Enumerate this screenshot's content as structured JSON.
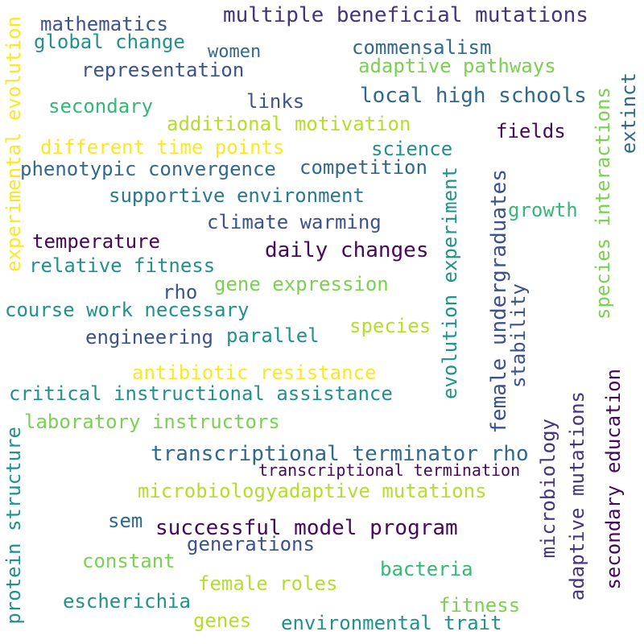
{
  "palette": {
    "dark_purple": "#46085c",
    "indigo": "#3b528b",
    "blue": "#31688e",
    "teal": "#21918c",
    "green": "#35b779",
    "light_green": "#7ad151",
    "yellow": "#fde725",
    "lime": "#b5de2b"
  },
  "words": [
    {
      "text": "multiple beneficial mutations",
      "color": "#46337e",
      "orientation": "horizontal"
    },
    {
      "text": "mathematics",
      "color": "#3b528b",
      "orientation": "horizontal"
    },
    {
      "text": "global change",
      "color": "#21918c",
      "orientation": "horizontal"
    },
    {
      "text": "women",
      "color": "#31688e",
      "orientation": "horizontal"
    },
    {
      "text": "commensalism",
      "color": "#31688e",
      "orientation": "horizontal"
    },
    {
      "text": "representation",
      "color": "#3b528b",
      "orientation": "horizontal"
    },
    {
      "text": "adaptive pathways",
      "color": "#7ad151",
      "orientation": "horizontal"
    },
    {
      "text": "links",
      "color": "#3b528b",
      "orientation": "horizontal"
    },
    {
      "text": "local high schools",
      "color": "#31688e",
      "orientation": "horizontal"
    },
    {
      "text": "secondary",
      "color": "#35b779",
      "orientation": "horizontal"
    },
    {
      "text": "additional motivation",
      "color": "#b5de2b",
      "orientation": "horizontal"
    },
    {
      "text": "fields",
      "color": "#46085c",
      "orientation": "horizontal"
    },
    {
      "text": "different time points",
      "color": "#fde725",
      "orientation": "horizontal"
    },
    {
      "text": "science",
      "color": "#21918c",
      "orientation": "horizontal"
    },
    {
      "text": "phenotypic convergence",
      "color": "#31688e",
      "orientation": "horizontal"
    },
    {
      "text": "competition",
      "color": "#31688e",
      "orientation": "horizontal"
    },
    {
      "text": "supportive environment",
      "color": "#2a788e",
      "orientation": "horizontal"
    },
    {
      "text": "growth",
      "color": "#35b779",
      "orientation": "horizontal"
    },
    {
      "text": "climate warming",
      "color": "#3b528b",
      "orientation": "horizontal"
    },
    {
      "text": "temperature",
      "color": "#46085c",
      "orientation": "horizontal"
    },
    {
      "text": "daily changes",
      "color": "#46085c",
      "orientation": "horizontal"
    },
    {
      "text": "relative fitness",
      "color": "#21918c",
      "orientation": "horizontal"
    },
    {
      "text": "gene expression",
      "color": "#7ad151",
      "orientation": "horizontal"
    },
    {
      "text": "rho",
      "color": "#3b528b",
      "orientation": "horizontal"
    },
    {
      "text": "course work necessary",
      "color": "#21918c",
      "orientation": "horizontal"
    },
    {
      "text": "species",
      "color": "#b5de2b",
      "orientation": "horizontal"
    },
    {
      "text": "engineering",
      "color": "#3b528b",
      "orientation": "horizontal"
    },
    {
      "text": "parallel",
      "color": "#21918c",
      "orientation": "horizontal"
    },
    {
      "text": "antibiotic resistance",
      "color": "#fde725",
      "orientation": "horizontal"
    },
    {
      "text": "critical instructional assistance",
      "color": "#21918c",
      "orientation": "horizontal"
    },
    {
      "text": "laboratory instructors",
      "color": "#7ad151",
      "orientation": "horizontal"
    },
    {
      "text": "transcriptional terminator rho",
      "color": "#31688e",
      "orientation": "horizontal"
    },
    {
      "text": "transcriptional termination",
      "color": "#46085c",
      "orientation": "horizontal"
    },
    {
      "text": "microbiologyadaptive mutations",
      "color": "#b5de2b",
      "orientation": "horizontal"
    },
    {
      "text": "sem",
      "color": "#31688e",
      "orientation": "horizontal"
    },
    {
      "text": "successful model program",
      "color": "#46085c",
      "orientation": "horizontal"
    },
    {
      "text": "generations",
      "color": "#3b528b",
      "orientation": "horizontal"
    },
    {
      "text": "constant",
      "color": "#7ad151",
      "orientation": "horizontal"
    },
    {
      "text": "bacteria",
      "color": "#35b779",
      "orientation": "horizontal"
    },
    {
      "text": "female roles",
      "color": "#b5de2b",
      "orientation": "horizontal"
    },
    {
      "text": "escherichia",
      "color": "#21918c",
      "orientation": "horizontal"
    },
    {
      "text": "fitness",
      "color": "#7ad151",
      "orientation": "horizontal"
    },
    {
      "text": "genes",
      "color": "#b5de2b",
      "orientation": "horizontal"
    },
    {
      "text": "environmental trait",
      "color": "#21918c",
      "orientation": "horizontal"
    },
    {
      "text": "experimental evolution",
      "color": "#fde725",
      "orientation": "vertical"
    },
    {
      "text": "protein structure",
      "color": "#21918c",
      "orientation": "vertical"
    },
    {
      "text": "evolution experiment",
      "color": "#21918c",
      "orientation": "vertical"
    },
    {
      "text": "female undergraduates",
      "color": "#3b528b",
      "orientation": "vertical"
    },
    {
      "text": "stability",
      "color": "#3b528b",
      "orientation": "vertical"
    },
    {
      "text": "microbiology",
      "color": "#46337e",
      "orientation": "vertical"
    },
    {
      "text": "adaptive mutations",
      "color": "#46337e",
      "orientation": "vertical"
    },
    {
      "text": "secondary education",
      "color": "#46085c",
      "orientation": "vertical"
    },
    {
      "text": "species interactions",
      "color": "#7ad151",
      "orientation": "vertical"
    },
    {
      "text": "extinct",
      "color": "#31688e",
      "orientation": "vertical"
    }
  ]
}
